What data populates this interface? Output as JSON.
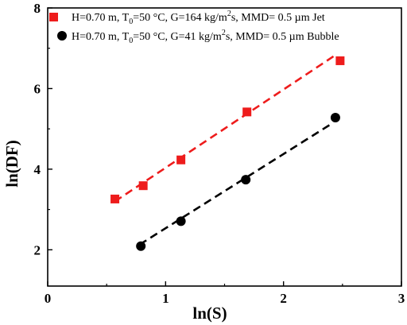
{
  "chart_data": {
    "type": "scatter",
    "xlabel": "ln(S)",
    "ylabel": "ln(DF)",
    "xlim": [
      0,
      3
    ],
    "ylim": [
      1.1,
      8
    ],
    "x_ticks": [
      "0",
      "1",
      "2",
      "3"
    ],
    "y_ticks": [
      "2",
      "4",
      "6",
      "8"
    ],
    "grid": false,
    "legend_position": "top",
    "series": [
      {
        "name": "H=0.70 m, T0=50 °C, G=164 kg/m2s, MMD= 0.5 µm Jet",
        "legend": {
          "pre": "H=0.70 m, T",
          "sub": "0",
          "mid": "=50 °C,  G=164 kg/m",
          "sup": "2",
          "post": "s, MMD= 0.5 µm  Jet"
        },
        "marker": "square",
        "color": "#ee1c1c",
        "x": [
          0.57,
          0.81,
          1.13,
          1.69,
          2.48
        ],
        "y": [
          3.26,
          3.59,
          4.23,
          5.42,
          6.69
        ],
        "fit_line": {
          "x": [
            0.57,
            2.45
          ],
          "y": [
            3.2,
            6.85
          ]
        }
      },
      {
        "name": "H=0.70 m, T0=50 °C, G=41 kg/m2s, MMD= 0.5 µm Bubble",
        "legend": {
          "pre": "H=0.70 m, T",
          "sub": "0",
          "mid": "=50 °C,  G=41 kg/m",
          "sup": "2",
          "post": "s, MMD= 0.5 µm  Bubble"
        },
        "marker": "circle",
        "color": "#000000",
        "x": [
          0.79,
          1.13,
          1.68,
          2.44
        ],
        "y": [
          2.09,
          2.71,
          3.74,
          5.28
        ],
        "fit_line": {
          "x": [
            0.78,
            2.42
          ],
          "y": [
            2.13,
            5.15
          ]
        }
      }
    ]
  }
}
